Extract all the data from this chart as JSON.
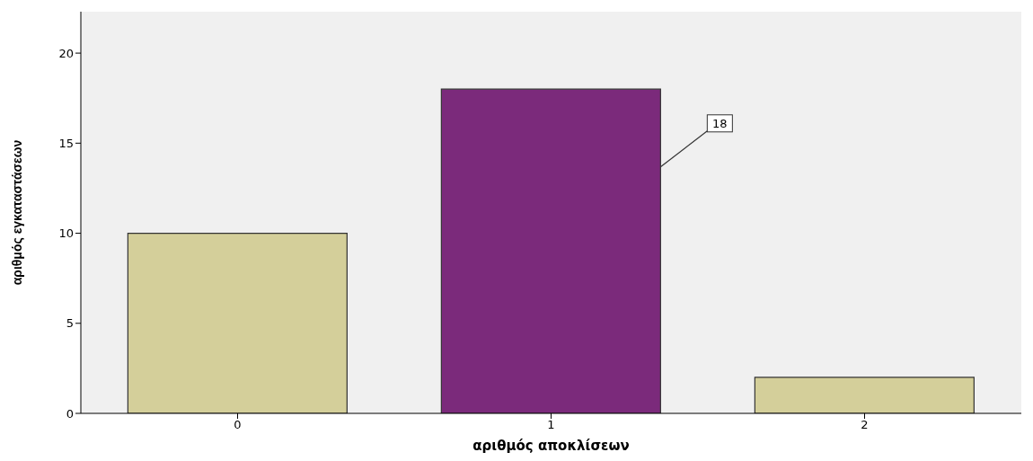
{
  "chart_data": {
    "type": "bar",
    "xlabel": "αριθμός αποκλίσεων",
    "ylabel": "αριθμός εγκαταστάσεων",
    "categories": [
      "0",
      "1",
      "2"
    ],
    "values": [
      10,
      18,
      2
    ],
    "colors": [
      "#d4cf9a",
      "#7b2a7b",
      "#d4cf9a"
    ],
    "value_labels": [
      null,
      "18",
      null
    ],
    "ylim": [
      0,
      22.3
    ],
    "yticks": [
      0,
      5,
      10,
      15,
      20
    ]
  }
}
